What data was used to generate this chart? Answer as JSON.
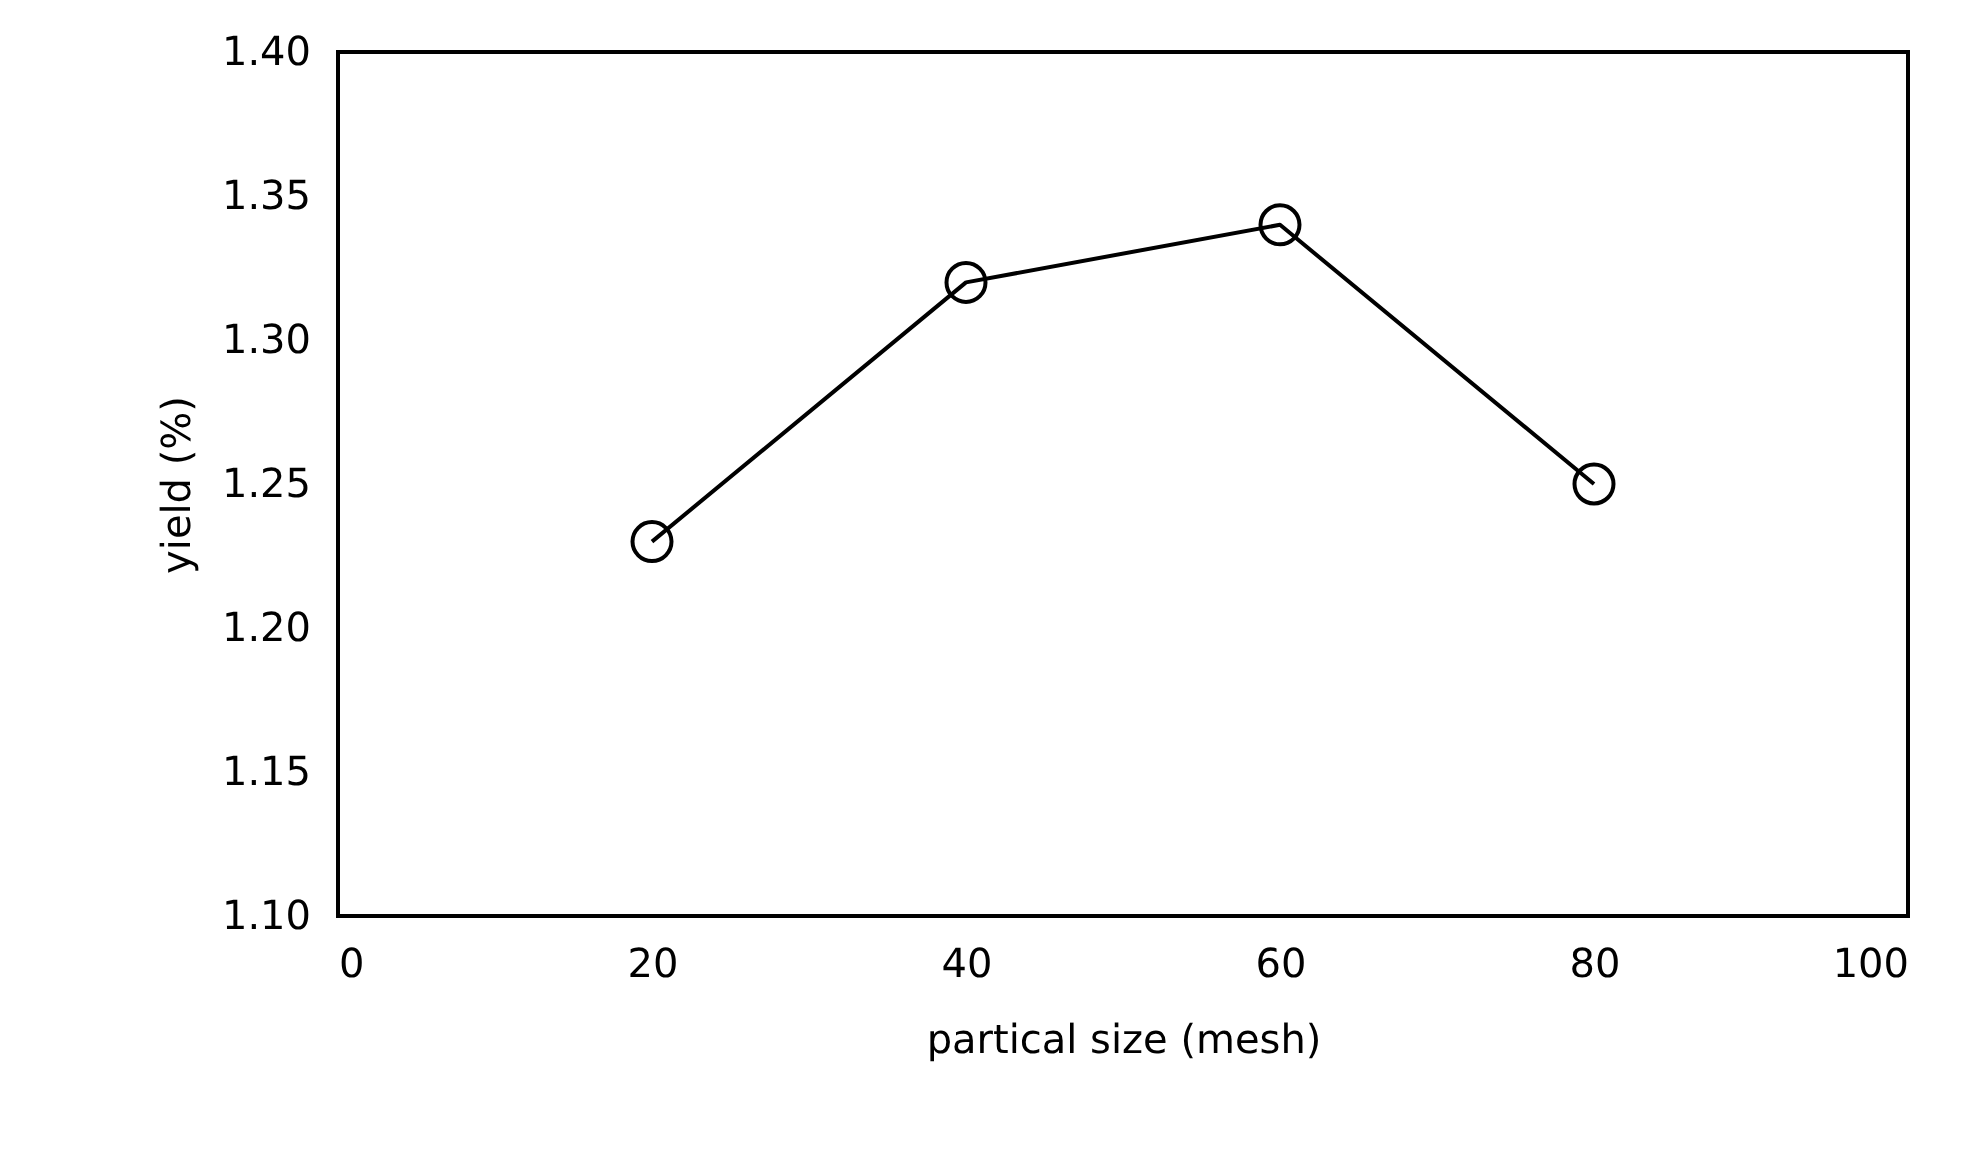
{
  "chart_data": {
    "type": "line",
    "xlabel": "partical size (mesh)",
    "ylabel": "yield (%)",
    "x": [
      20,
      40,
      60,
      80
    ],
    "series": [
      {
        "color": "#000000",
        "values": [
          1.23,
          1.32,
          1.34,
          1.25
        ]
      }
    ],
    "xlim": [
      0,
      100
    ],
    "xticks": [
      0,
      20,
      40,
      60,
      80,
      100
    ],
    "ylim": [
      1.1,
      1.4
    ],
    "yticks": [
      {
        "value": 1.1,
        "label": "1.10"
      },
      {
        "value": 1.15,
        "label": "1.15"
      },
      {
        "value": 1.2,
        "label": "1.20"
      },
      {
        "value": 1.25,
        "label": "1.25"
      },
      {
        "value": 1.3,
        "label": "1.30"
      },
      {
        "value": 1.35,
        "label": "1.35"
      },
      {
        "value": 1.4,
        "label": "1.40"
      }
    ],
    "marker": "circle",
    "line_style": "solid",
    "grid": false
  }
}
